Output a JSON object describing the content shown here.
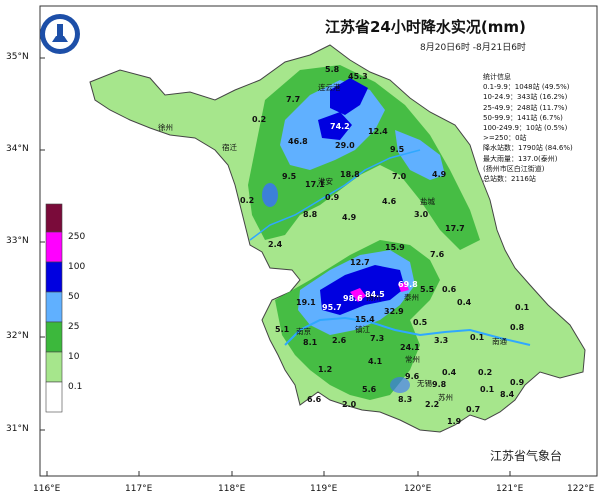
{
  "title": "江苏省24小时降水实况(mm)",
  "subtitle": "8月20日6时 -8月21日6时",
  "agency": "江苏省气象台",
  "stats": [
    "统计信息",
    "0.1-9.9：1048站 (49.5%)",
    "10-24.9：343站 (16.2%)",
    "25-49.9：248站 (11.7%)",
    "50-99.9：141站 (6.7%)",
    "100-249.9：10站 (0.5%)",
    ">=250：0站",
    "降水站数：1790站 (84.6%)",
    "最大雨量：137.0(泰州)",
    "(扬州市区白江街道)",
    "总站数：2116站"
  ],
  "axes": {
    "y_labels": [
      "35°N",
      "34°N",
      "33°N",
      "32°N",
      "31°N"
    ],
    "x_labels": [
      "116°E",
      "117°E",
      "118°E",
      "119°E",
      "120°E",
      "121°E",
      "122°E"
    ]
  },
  "legend": {
    "levels": [
      "250",
      "100",
      "50",
      "25",
      "10",
      "0.1"
    ],
    "colors": [
      "#7a0b3a",
      "#ff00ff",
      "#0000e0",
      "#60b0ff",
      "#3cb83c",
      "#a6e68c",
      "#ffffff"
    ]
  },
  "cities": [
    "徐州",
    "宿迁",
    "连云港",
    "淮安",
    "盐城",
    "扬州",
    "泰州",
    "南京",
    "镇江",
    "常州",
    "无锡",
    "苏州",
    "南通"
  ],
  "values": [
    "45.3",
    "5.8",
    "7.7",
    "74.2",
    "0.2",
    "46.8",
    "12.4",
    "29.0",
    "9.5",
    "17.1",
    "18.8",
    "0.9",
    "7.0",
    "4.9",
    "9.5",
    "0.2",
    "8.8",
    "4.9",
    "4.6",
    "3.0",
    "17.7",
    "2.4",
    "15.9",
    "12.7",
    "69.8",
    "84.5",
    "98.6",
    "95.7",
    "19.1",
    "5.1",
    "15.4",
    "32.9",
    "0.5",
    "0.4",
    "0.1",
    "0.8",
    "8.1",
    "2.6",
    "7.3",
    "24.1",
    "0.1",
    "0.4",
    "1.2",
    "4.1",
    "9.6",
    "9.8",
    "0.2",
    "0.9",
    "5.6",
    "8.3",
    "2.2",
    "1.9",
    "0.7",
    "0.1",
    "8.4",
    "7.6",
    "5.5",
    "3.3",
    "0.6",
    "2.0",
    "6.6"
  ]
}
